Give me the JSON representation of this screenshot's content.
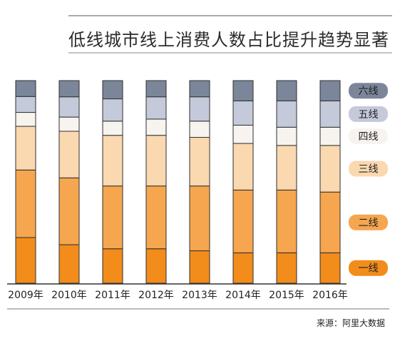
{
  "title": "低线城市线上消费人数占比提升趋势显著",
  "source": "来源：阿里大数据",
  "chart_data": {
    "type": "bar",
    "stacked": true,
    "normalized": true,
    "categories": [
      "2009年",
      "2010年",
      "2011年",
      "2012年",
      "2013年",
      "2014年",
      "2015年",
      "2016年"
    ],
    "ylim": [
      0,
      100
    ],
    "series": [
      {
        "name": "一线",
        "color": "#f28c1b",
        "values": [
          23,
          19,
          17,
          17,
          16,
          15,
          15,
          15
        ]
      },
      {
        "name": "二线",
        "color": "#f5a64f",
        "values": [
          34,
          33,
          31,
          31,
          32,
          31,
          31,
          30
        ]
      },
      {
        "name": "三线",
        "color": "#fad8b0",
        "values": [
          22,
          23,
          25,
          25,
          24,
          23,
          22,
          23
        ]
      },
      {
        "name": "四线",
        "color": "#f7f4f0",
        "values": [
          7,
          7,
          7,
          8,
          8,
          9,
          9,
          9
        ]
      },
      {
        "name": "五线",
        "color": "#c4cada",
        "values": [
          8,
          10,
          11,
          11,
          12,
          12,
          13,
          13
        ]
      },
      {
        "name": "六线",
        "color": "#7b869a",
        "values": [
          8,
          8,
          9,
          8,
          8,
          10,
          10,
          10
        ]
      }
    ]
  }
}
